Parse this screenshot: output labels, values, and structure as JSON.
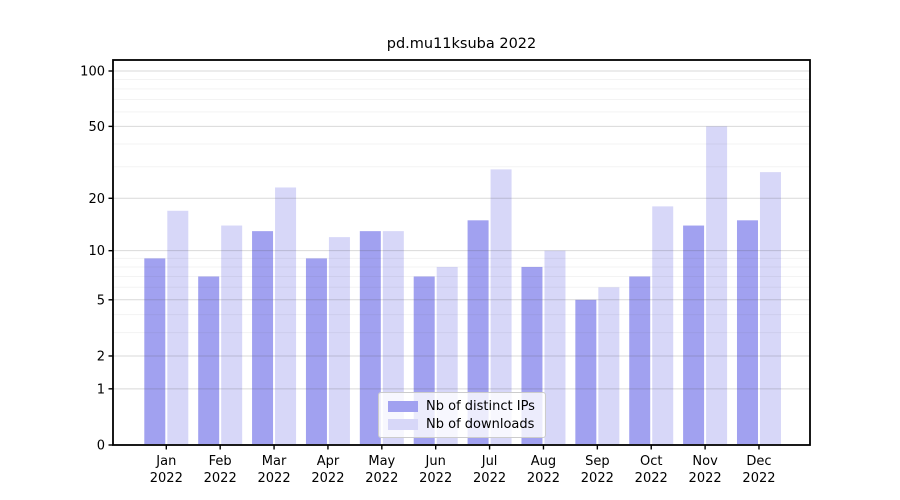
{
  "title": "pd.mu11ksuba 2022",
  "legend": {
    "entries": [
      {
        "label": "Nb of distinct IPs",
        "color": "#a1a1f0"
      },
      {
        "label": "Nb of downloads",
        "color": "#d7d7f8"
      }
    ]
  },
  "chart_data": {
    "type": "bar",
    "title": "pd.mu11ksuba 2022",
    "categories": [
      "Jan",
      "Feb",
      "Mar",
      "Apr",
      "May",
      "Jun",
      "Jul",
      "Aug",
      "Sep",
      "Oct",
      "Nov",
      "Dec"
    ],
    "category_year": "2022",
    "series": [
      {
        "name": "Nb of distinct IPs",
        "color": "#a1a1f0",
        "values": [
          9,
          7,
          13,
          9,
          13,
          7,
          15,
          8,
          5,
          7,
          14,
          15
        ]
      },
      {
        "name": "Nb of downloads",
        "color": "#d7d7f8",
        "values": [
          17,
          14,
          23,
          12,
          13,
          8,
          29,
          10,
          6,
          18,
          50,
          28
        ]
      }
    ],
    "yscale": "log1p",
    "ylim": [
      0,
      100
    ],
    "yticks_major": [
      0,
      1,
      2,
      5,
      10,
      20,
      50,
      100
    ],
    "yticks_minor": [
      3,
      4,
      6,
      7,
      8,
      9,
      30,
      40,
      60,
      70,
      80,
      90
    ],
    "grid": true,
    "legend_position": "lower center",
    "xlabel": "",
    "ylabel": ""
  },
  "colors": {
    "grid_major": "rgba(80,80,80,0.22)",
    "grid_minor": "rgba(80,80,80,0.07)",
    "spine": "#000000",
    "tick_label": "#000000"
  }
}
